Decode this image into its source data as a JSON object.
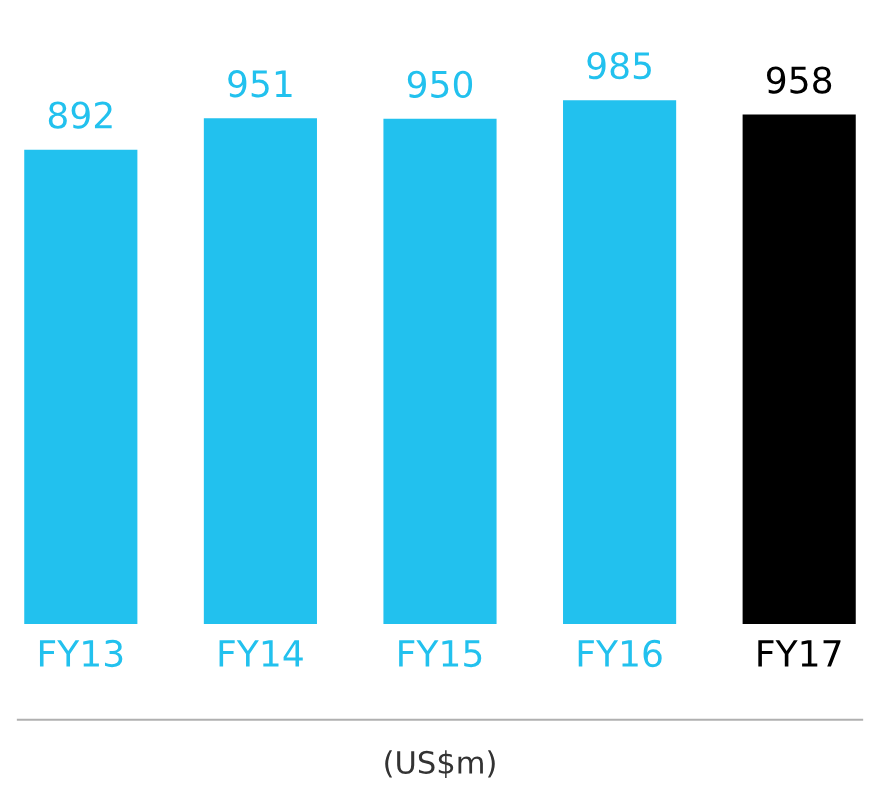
{
  "chart_data": {
    "type": "bar",
    "categories": [
      "FY13",
      "FY14",
      "FY15",
      "FY16",
      "FY17"
    ],
    "values": [
      892,
      951,
      950,
      985,
      958
    ],
    "colors": [
      "#22c1ee",
      "#22c1ee",
      "#22c1ee",
      "#22c1ee",
      "#000000"
    ],
    "data_labels": true,
    "grid": false,
    "legend": false,
    "annotations": [
      "(US$m)"
    ]
  }
}
